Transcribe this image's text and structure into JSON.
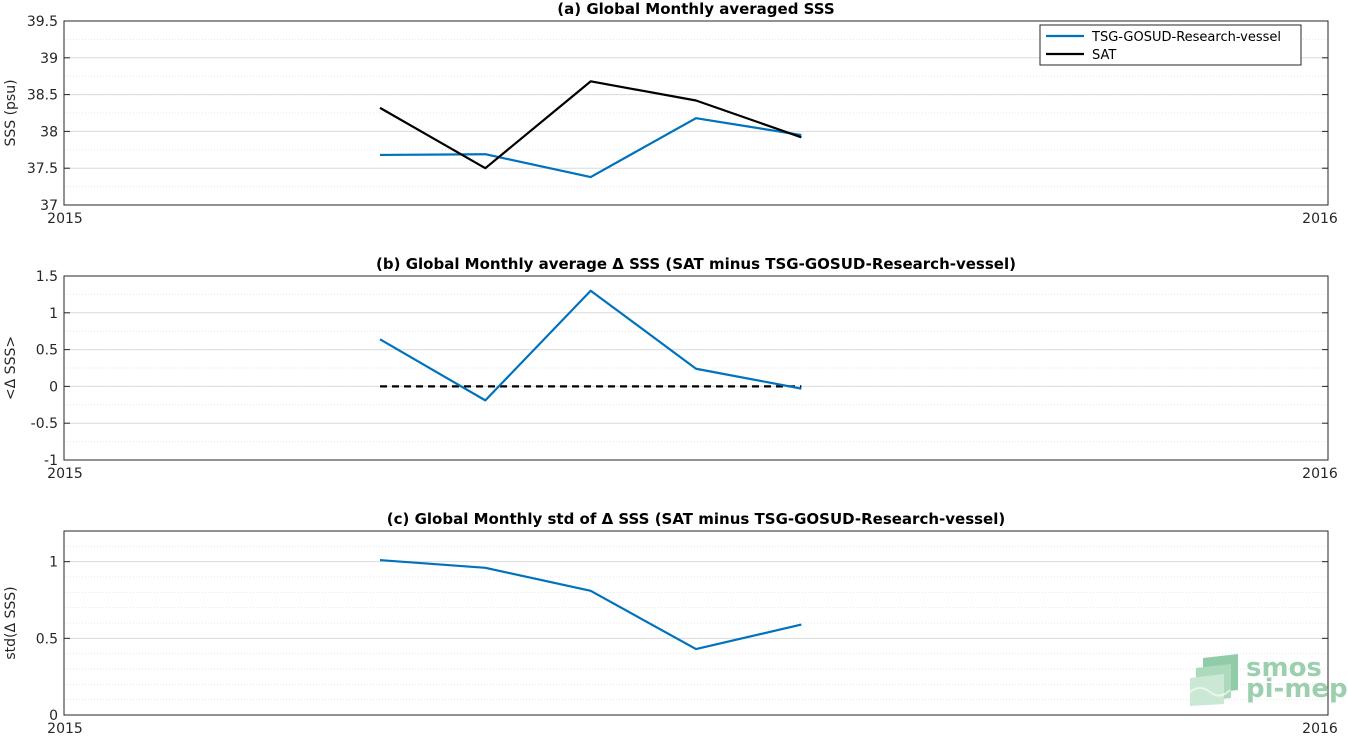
{
  "chart_data": [
    {
      "type": "line",
      "title": "(a) Global Monthly averaged SSS",
      "ylabel": "SSS (psu)",
      "xlim": [
        "2015",
        "2016"
      ],
      "ylim": [
        37,
        39.5
      ],
      "yticks": [
        "37",
        "37.5",
        "38",
        "38.5",
        "39",
        "39.5"
      ],
      "xticks": [
        "2015",
        "2016"
      ],
      "grid": true,
      "legend": "top-right",
      "x": [
        "2015-04",
        "2015-05",
        "2015-06",
        "2015-07",
        "2015-08"
      ],
      "series": [
        {
          "name": "TSG-GOSUD-Research-vessel",
          "color": "#0072BD",
          "values": [
            37.68,
            37.69,
            37.38,
            38.18,
            37.95
          ]
        },
        {
          "name": "SAT",
          "color": "#000000",
          "values": [
            38.32,
            37.5,
            38.68,
            38.42,
            37.92
          ]
        }
      ]
    },
    {
      "type": "line",
      "title": "(b) Global Monthly average Δ SSS (SAT minus TSG-GOSUD-Research-vessel)",
      "ylabel": "<Δ SSS>",
      "xlim": [
        "2015",
        "2016"
      ],
      "ylim": [
        -1,
        1.5
      ],
      "yticks": [
        "-1",
        "-0.5",
        "0",
        "0.5",
        "1",
        "1.5"
      ],
      "xticks": [
        "2015",
        "2016"
      ],
      "grid": true,
      "x": [
        "2015-04",
        "2015-05",
        "2015-06",
        "2015-07",
        "2015-08"
      ],
      "series": [
        {
          "color": "#0072BD",
          "values": [
            0.64,
            -0.19,
            1.3,
            0.24,
            -0.03
          ]
        }
      ],
      "reference_line": {
        "y": 0,
        "style": "dashed",
        "color": "#000000"
      }
    },
    {
      "type": "line",
      "title": "(c) Global Monthly std of Δ SSS (SAT minus TSG-GOSUD-Research-vessel)",
      "ylabel": "std(Δ SSS)",
      "xlim": [
        "2015",
        "2016"
      ],
      "ylim": [
        0,
        1.2
      ],
      "yticks": [
        "0",
        "0.5",
        "1"
      ],
      "xticks": [
        "2015",
        "2016"
      ],
      "grid": true,
      "x": [
        "2015-04",
        "2015-05",
        "2015-06",
        "2015-07",
        "2015-08"
      ],
      "series": [
        {
          "color": "#0072BD",
          "values": [
            1.01,
            0.96,
            0.81,
            0.43,
            0.59
          ]
        }
      ]
    }
  ],
  "logo": {
    "line1": "smos",
    "line2": "pi-mep"
  }
}
